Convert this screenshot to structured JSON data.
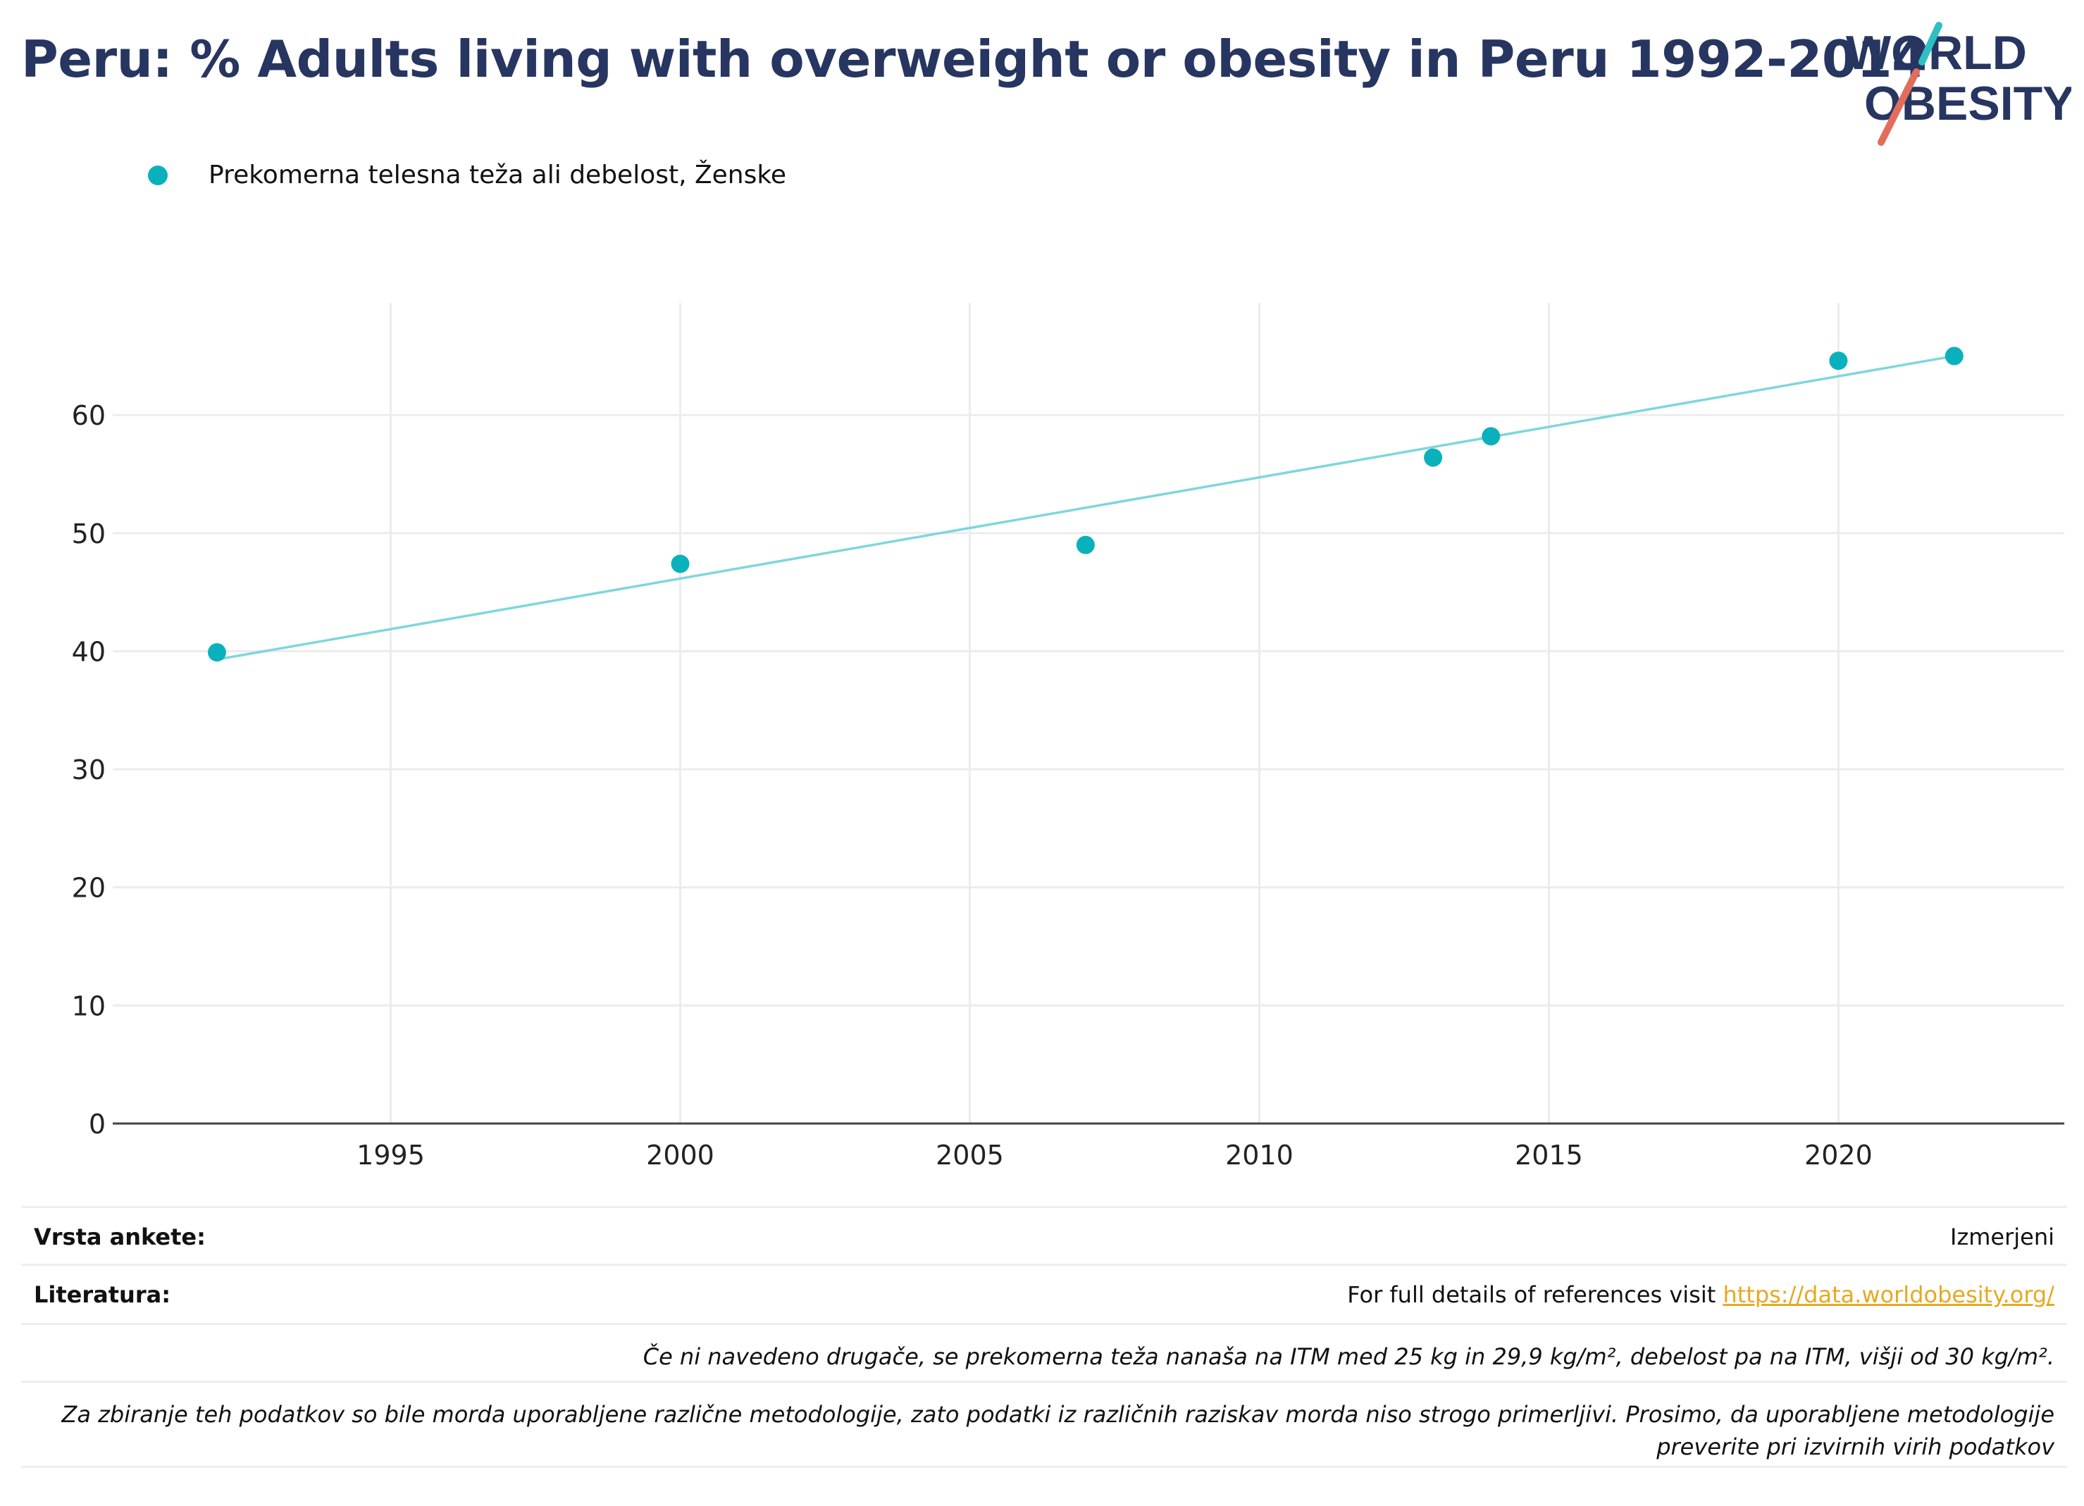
{
  "title": "Peru: % Adults living with overweight or obesity in Peru 1992-2014",
  "logo": {
    "line1": "WORLD",
    "line2": "OBESITY",
    "accent_teal": "#2dbfc1",
    "accent_coral": "#e26d5c",
    "text_color": "#273561"
  },
  "legend": {
    "label": "Prekomerna telesna teža ali debelost, Ženske",
    "color": "#0ab1bd"
  },
  "chart_data": {
    "type": "scatter",
    "title": "Peru: % Adults living with overweight or obesity in Peru 1992-2014",
    "xlabel": "",
    "ylabel": "",
    "xlim": [
      1990.2,
      2023.9
    ],
    "ylim": [
      0,
      69.5
    ],
    "x_ticks": [
      1995,
      2000,
      2005,
      2010,
      2015,
      2020
    ],
    "y_ticks": [
      0,
      10,
      20,
      30,
      40,
      50,
      60
    ],
    "grid": true,
    "legend_position": "top-left",
    "series": [
      {
        "name": "Prekomerna telesna teža ali debelost, Ženske",
        "color": "#0ab1bd",
        "points": [
          {
            "x": 1992,
            "y": 39.9
          },
          {
            "x": 2000,
            "y": 47.4
          },
          {
            "x": 2007,
            "y": 49.0
          },
          {
            "x": 2013,
            "y": 56.4
          },
          {
            "x": 2014,
            "y": 58.2
          },
          {
            "x": 2020,
            "y": 64.6
          },
          {
            "x": 2022,
            "y": 65.0
          }
        ]
      }
    ],
    "trendline": {
      "color": "#7fd6dc",
      "start": {
        "x": 1992,
        "y": 39.3
      },
      "end": {
        "x": 2022,
        "y": 65.0
      }
    }
  },
  "info": {
    "survey_label": "Vrsta ankete:",
    "survey_value": "Izmerjeni",
    "refs_label": "Literatura:",
    "refs_text": "For full details of references visit ",
    "refs_link": "https://data.worldobesity.org/",
    "note1": "Če ni navedeno drugače, se prekomerna teža nanaša na ITM med 25 kg in 29,9 kg/m², debelost pa na ITM, višji od 30 kg/m².",
    "note2": "Za zbiranje teh podatkov so bile morda uporabljene različne metodologije, zato podatki iz različnih raziskav morda niso strogo primerljivi. Prosimo, da uporabljene metodologije preverite pri izvirnih virih podatkov"
  }
}
